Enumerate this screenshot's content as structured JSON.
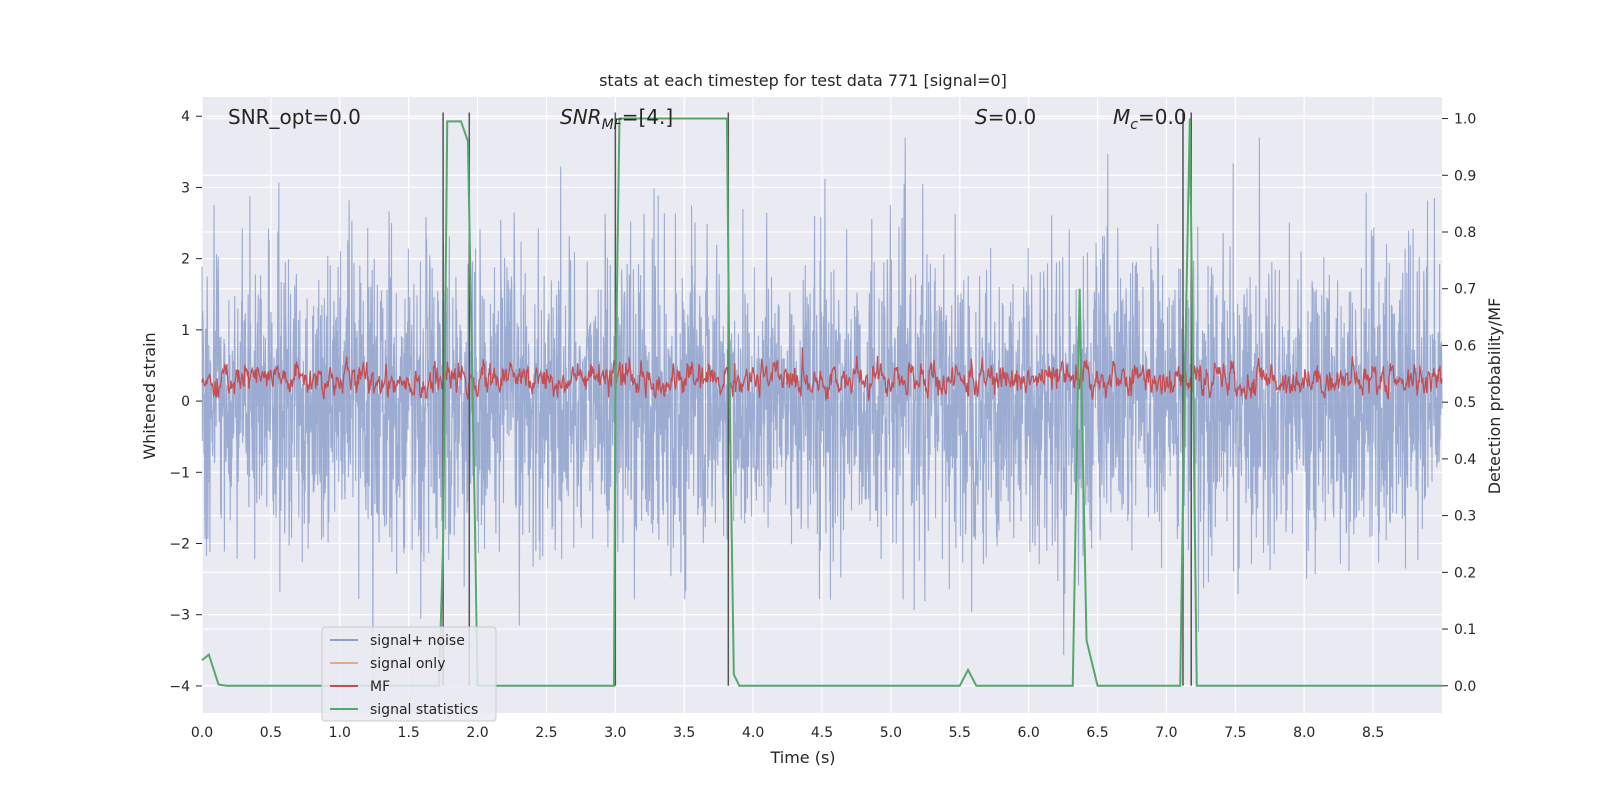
{
  "chart_data": {
    "type": "line",
    "title": "stats at each timestep for test data 771 [signal=0]",
    "xlabel": "Time (s)",
    "ylabel_left": "Whitened strain",
    "ylabel_right": "Detection probability/MF",
    "xlim": [
      0.0,
      9.0
    ],
    "ylim_left": [
      -4.38,
      4.27
    ],
    "ylim_right": [
      -0.048,
      1.038
    ],
    "x_ticks": [
      "0.0",
      "0.5",
      "1.0",
      "1.5",
      "2.0",
      "2.5",
      "3.0",
      "3.5",
      "4.0",
      "4.5",
      "5.0",
      "5.5",
      "6.0",
      "6.5",
      "7.0",
      "7.5",
      "8.0",
      "8.5"
    ],
    "y_ticks_left": [
      "4",
      "3",
      "2",
      "1",
      "0",
      "−1",
      "−2",
      "−3",
      "−4"
    ],
    "y_ticks_right": [
      "1.0",
      "0.9",
      "0.8",
      "0.7",
      "0.6",
      "0.5",
      "0.4",
      "0.3",
      "0.2",
      "0.1",
      "0.0"
    ],
    "annotations": {
      "snr_opt": "SNR_opt=0.0",
      "snr_mf_base": "SNR",
      "snr_mf_sub": "MF",
      "snr_mf_value": "=[4.]",
      "s_base": "S",
      "s_value": "=0.0",
      "mc_base": "M",
      "mc_sub": "c",
      "mc_value": "=0.0"
    },
    "grid": true,
    "legend_position": "lower-left",
    "series": [
      {
        "name": "signal+ noise",
        "color": "#8da0cb",
        "style": "noise band ~N(0,1), spikes to about ±3.5"
      },
      {
        "name": "signal only",
        "color": "#e8a987",
        "values": []
      },
      {
        "name": "MF",
        "color": "#c44e52",
        "style": "noisy trace around 0.3 between 0.0 and 1.0"
      },
      {
        "name": "signal statistics",
        "color": "#55a868",
        "axis": "right",
        "x": [
          0.0,
          0.05,
          0.12,
          0.18,
          1.72,
          1.75,
          1.78,
          1.82,
          1.88,
          1.93,
          1.98,
          2.0,
          2.99,
          3.0,
          3.03,
          3.06,
          3.81,
          3.83,
          3.86,
          3.9,
          5.5,
          5.56,
          5.62,
          6.32,
          6.37,
          6.42,
          6.5,
          7.1,
          7.13,
          7.17,
          7.22,
          7.25,
          9.0
        ],
        "y": [
          0.045,
          0.055,
          0.002,
          0.0,
          0.0,
          0.25,
          0.995,
          0.995,
          0.995,
          0.96,
          0.3,
          0.0,
          0.0,
          0.5,
          1.0,
          1.0,
          1.0,
          0.5,
          0.02,
          0.0,
          0.0,
          0.028,
          0.0,
          0.0,
          0.7,
          0.08,
          0.0,
          0.0,
          0.5,
          1.0,
          0.0,
          0.0,
          0.0
        ]
      }
    ],
    "vertical_markers_x": [
      1.75,
      1.94,
      3.0,
      3.82,
      7.12,
      7.18
    ]
  }
}
